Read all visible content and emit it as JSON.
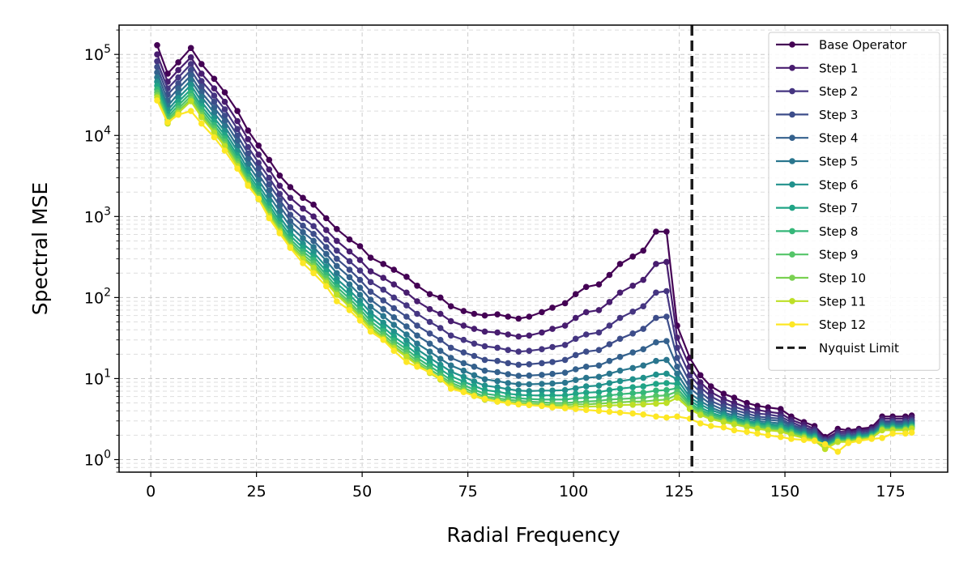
{
  "chart_data": {
    "type": "line",
    "xlabel": "Radial Frequency",
    "ylabel": "Spectral MSE",
    "xlim": [
      -7.5,
      188.5
    ],
    "ylim": [
      0.7,
      230000
    ],
    "yscale": "log",
    "xticks": [
      0,
      25,
      50,
      75,
      100,
      125,
      150,
      175
    ],
    "xtick_labels": [
      "0",
      "25",
      "50",
      "75",
      "100",
      "125",
      "150",
      "175"
    ],
    "yticks": [
      1,
      10,
      100,
      1000,
      10000,
      100000
    ],
    "ytick_base": "10",
    "ytick_exponents": [
      "0",
      "1",
      "2",
      "3",
      "4",
      "5"
    ],
    "grid": true,
    "legend_position": "top-right",
    "reference_line": {
      "name": "Nyquist Limit",
      "x": 128,
      "style": "dashed",
      "color": "#1a1a1a"
    },
    "x": [
      1.5,
      4,
      6.5,
      9.5,
      12,
      15,
      17.5,
      20.5,
      23,
      25.5,
      28,
      30.5,
      33,
      36,
      38.5,
      41.5,
      44,
      47,
      49.5,
      52,
      55,
      57.5,
      60.5,
      63,
      66,
      68.5,
      71,
      74,
      76.5,
      79,
      82,
      84.5,
      87,
      89.5,
      92.5,
      95,
      98,
      100.5,
      103,
      106,
      108.5,
      111,
      114,
      116.5,
      119.5,
      122,
      124.5,
      127.5,
      130,
      132.5,
      135.5,
      138,
      141,
      143.5,
      146,
      149,
      151.5,
      154.5,
      157,
      159.5,
      162.5,
      165,
      167.5,
      170.5,
      173,
      175.5,
      178.5,
      180
    ],
    "series": [
      {
        "name": "Base Operator",
        "color": "#440154",
        "values": [
          130000,
          58000,
          80000,
          120000,
          76000,
          50000,
          34000,
          20000,
          11500,
          7500,
          5000,
          3200,
          2300,
          1700,
          1400,
          950,
          700,
          520,
          430,
          310,
          260,
          220,
          180,
          140,
          110,
          100,
          78,
          68,
          63,
          60,
          62,
          58,
          55,
          58,
          66,
          75,
          85,
          110,
          135,
          145,
          190,
          260,
          320,
          380,
          650,
          650,
          45,
          18,
          11,
          8,
          6.5,
          5.8,
          5.0,
          4.6,
          4.4,
          4.2,
          3.4,
          2.9,
          2.6,
          1.9,
          2.4,
          2.3,
          2.4,
          2.5,
          3.4,
          3.4,
          3.4,
          3.5
        ]
      },
      {
        "name": "Step 1",
        "color": "#481d6f",
        "values": [
          100000,
          46000,
          64000,
          92000,
          58000,
          38000,
          26000,
          15000,
          9000,
          5800,
          3800,
          2400,
          1700,
          1250,
          1000,
          680,
          500,
          370,
          290,
          210,
          175,
          145,
          115,
          90,
          72,
          63,
          51,
          45,
          41,
          38,
          37,
          35,
          33,
          34,
          37,
          41,
          45,
          56,
          66,
          70,
          88,
          115,
          140,
          165,
          260,
          275,
          32,
          14,
          9,
          6.8,
          5.6,
          5.0,
          4.4,
          4.1,
          3.9,
          3.7,
          3.1,
          2.7,
          2.4,
          1.8,
          2.2,
          2.2,
          2.3,
          2.4,
          3.2,
          3.2,
          3.2,
          3.3
        ]
      },
      {
        "name": "Step 2",
        "color": "#453581",
        "values": [
          82000,
          38000,
          52000,
          76000,
          47000,
          31000,
          21000,
          12000,
          7200,
          4600,
          3000,
          1900,
          1300,
          950,
          760,
          520,
          380,
          280,
          215,
          155,
          125,
          100,
          80,
          63,
          50,
          42,
          34,
          30,
          27,
          25,
          24,
          22.5,
          21.5,
          22,
          23,
          24.5,
          26,
          31,
          35,
          37,
          45,
          56,
          67,
          78,
          115,
          120,
          24,
          11,
          7.8,
          6.0,
          5.0,
          4.5,
          4.0,
          3.7,
          3.6,
          3.4,
          2.9,
          2.5,
          2.3,
          1.75,
          2.1,
          2.1,
          2.2,
          2.3,
          3.0,
          3.0,
          3.0,
          3.1
        ]
      },
      {
        "name": "Step 3",
        "color": "#3d4d8a",
        "values": [
          70000,
          32000,
          44000,
          64000,
          40000,
          26000,
          17500,
          10000,
          6000,
          3900,
          2500,
          1600,
          1050,
          770,
          610,
          420,
          300,
          220,
          165,
          118,
          92,
          74,
          58,
          45,
          36,
          30,
          24,
          21,
          19,
          17,
          16.5,
          15.5,
          14.8,
          15,
          15.5,
          16,
          17,
          19.5,
          21.5,
          22.5,
          26.5,
          31,
          36,
          41,
          56,
          58,
          18,
          9.0,
          6.8,
          5.3,
          4.5,
          4.1,
          3.7,
          3.4,
          3.3,
          3.2,
          2.7,
          2.4,
          2.2,
          1.7,
          2.0,
          2.0,
          2.1,
          2.2,
          2.9,
          2.9,
          2.9,
          3.0
        ]
      },
      {
        "name": "Step 4",
        "color": "#34618d",
        "values": [
          60000,
          27000,
          38000,
          55000,
          34000,
          22000,
          15000,
          8500,
          5100,
          3300,
          2100,
          1350,
          880,
          640,
          500,
          345,
          245,
          178,
          132,
          94,
          72,
          57,
          44,
          34,
          27,
          22,
          18,
          15.5,
          14,
          12.5,
          12,
          11.3,
          10.8,
          10.9,
          11.1,
          11.4,
          11.8,
          13,
          14,
          14.5,
          16.5,
          18.5,
          21,
          23,
          28,
          29,
          14,
          7.6,
          6.0,
          4.8,
          4.1,
          3.8,
          3.4,
          3.2,
          3.1,
          3.0,
          2.6,
          2.3,
          2.1,
          1.65,
          1.95,
          1.95,
          2.05,
          2.15,
          2.8,
          2.8,
          2.8,
          2.9
        ]
      },
      {
        "name": "Step 5",
        "color": "#2a768e",
        "values": [
          52000,
          23000,
          33000,
          48000,
          30000,
          19000,
          13000,
          7300,
          4400,
          2800,
          1800,
          1150,
          750,
          540,
          420,
          285,
          200,
          145,
          108,
          77,
          59,
          46,
          35,
          27,
          21.5,
          17.5,
          14.5,
          12.5,
          11,
          9.8,
          9.3,
          8.8,
          8.5,
          8.5,
          8.6,
          8.7,
          8.9,
          9.6,
          10.2,
          10.5,
          11.5,
          12.5,
          13.5,
          14.5,
          16.5,
          17,
          11.5,
          6.6,
          5.3,
          4.4,
          3.8,
          3.5,
          3.2,
          3.0,
          2.9,
          2.8,
          2.5,
          2.2,
          2.0,
          1.6,
          1.9,
          1.9,
          2.0,
          2.1,
          2.7,
          2.7,
          2.7,
          2.8
        ]
      },
      {
        "name": "Step 6",
        "color": "#21918c",
        "values": [
          46000,
          20500,
          29000,
          42000,
          26000,
          16500,
          11300,
          6400,
          3800,
          2450,
          1550,
          990,
          650,
          460,
          360,
          240,
          170,
          123,
          91,
          65,
          49,
          38,
          29.5,
          23,
          18,
          14.8,
          12.2,
          10.5,
          9.2,
          8.2,
          7.8,
          7.4,
          7.1,
          7.0,
          7.1,
          7.1,
          7.2,
          7.6,
          8.0,
          8.2,
          8.8,
          9.3,
          9.8,
          10.2,
          11.2,
          11.5,
          9.8,
          5.9,
          4.8,
          4.1,
          3.6,
          3.3,
          3.0,
          2.85,
          2.75,
          2.65,
          2.4,
          2.1,
          1.95,
          1.55,
          1.85,
          1.85,
          1.95,
          2.05,
          2.6,
          2.6,
          2.6,
          2.7
        ]
      },
      {
        "name": "Step 7",
        "color": "#20a486",
        "values": [
          41000,
          18500,
          26000,
          37000,
          23000,
          14800,
          10100,
          5700,
          3400,
          2200,
          1380,
          880,
          580,
          410,
          320,
          212,
          150,
          108,
          80,
          57,
          43,
          33,
          25.5,
          20,
          15.8,
          13,
          10.7,
          9.2,
          8.1,
          7.2,
          6.9,
          6.5,
          6.3,
          6.2,
          6.2,
          6.2,
          6.2,
          6.5,
          6.7,
          6.8,
          7.2,
          7.5,
          7.8,
          8.0,
          8.6,
          8.8,
          8.6,
          5.4,
          4.4,
          3.8,
          3.4,
          3.15,
          2.9,
          2.75,
          2.65,
          2.55,
          2.3,
          2.05,
          1.9,
          1.5,
          1.8,
          1.8,
          1.9,
          2.0,
          2.5,
          2.5,
          2.5,
          2.6
        ]
      },
      {
        "name": "Step 8",
        "color": "#35b779",
        "values": [
          37000,
          17000,
          23500,
          33500,
          21000,
          13400,
          9200,
          5200,
          3100,
          2000,
          1250,
          800,
          525,
          370,
          290,
          190,
          135,
          97,
          72,
          51,
          38.5,
          29.5,
          23,
          18,
          14.2,
          11.7,
          9.6,
          8.3,
          7.3,
          6.5,
          6.2,
          5.9,
          5.7,
          5.6,
          5.5,
          5.5,
          5.5,
          5.7,
          5.8,
          5.9,
          6.2,
          6.4,
          6.6,
          6.7,
          7.1,
          7.2,
          7.6,
          5.0,
          4.1,
          3.6,
          3.25,
          3.0,
          2.8,
          2.65,
          2.55,
          2.45,
          2.2,
          2.0,
          1.85,
          1.45,
          1.75,
          1.75,
          1.85,
          1.95,
          2.45,
          2.45,
          2.45,
          2.55
        ]
      },
      {
        "name": "Step 9",
        "color": "#54c568",
        "values": [
          34000,
          15800,
          21500,
          30500,
          19200,
          12300,
          8400,
          4800,
          2850,
          1850,
          1150,
          735,
          485,
          340,
          265,
          174,
          123,
          88,
          65,
          46.5,
          35,
          27,
          21,
          16.5,
          13,
          10.8,
          8.9,
          7.7,
          6.7,
          6.0,
          5.7,
          5.5,
          5.3,
          5.2,
          5.1,
          5.0,
          5.0,
          5.1,
          5.2,
          5.3,
          5.5,
          5.6,
          5.7,
          5.8,
          6.1,
          6.2,
          6.9,
          4.7,
          3.9,
          3.4,
          3.1,
          2.9,
          2.7,
          2.55,
          2.45,
          2.35,
          2.15,
          1.95,
          1.8,
          1.42,
          1.72,
          1.72,
          1.82,
          1.92,
          2.4,
          2.4,
          2.4,
          2.5
        ]
      },
      {
        "name": "Step 10",
        "color": "#7ad151",
        "values": [
          31500,
          14800,
          20000,
          28000,
          17800,
          11400,
          7800,
          4450,
          2650,
          1720,
          1070,
          685,
          450,
          315,
          245,
          161,
          114,
          82,
          60,
          43,
          32.5,
          25,
          19.5,
          15.4,
          12.2,
          10.1,
          8.4,
          7.2,
          6.3,
          5.7,
          5.4,
          5.2,
          5.0,
          4.9,
          4.8,
          4.7,
          4.7,
          4.8,
          4.8,
          4.9,
          5.0,
          5.1,
          5.2,
          5.2,
          5.4,
          5.5,
          6.3,
          4.4,
          3.7,
          3.25,
          3.0,
          2.8,
          2.6,
          2.45,
          2.35,
          2.28,
          2.08,
          1.9,
          1.75,
          1.38,
          1.68,
          1.68,
          1.78,
          1.88,
          2.35,
          2.35,
          2.35,
          2.45
        ]
      },
      {
        "name": "Step 11",
        "color": "#bddf26",
        "values": [
          29500,
          14000,
          19000,
          26500,
          16800,
          10800,
          7350,
          4200,
          2500,
          1630,
          1010,
          650,
          425,
          298,
          232,
          152,
          108,
          77,
          57,
          41,
          31,
          23.8,
          18.5,
          14.7,
          11.7,
          9.7,
          8.0,
          6.9,
          6.1,
          5.5,
          5.2,
          5.0,
          4.8,
          4.7,
          4.6,
          4.5,
          4.45,
          4.5,
          4.5,
          4.55,
          4.65,
          4.7,
          4.75,
          4.8,
          4.9,
          5.0,
          5.8,
          4.2,
          3.55,
          3.15,
          2.9,
          2.72,
          2.52,
          2.4,
          2.3,
          2.22,
          2.02,
          1.85,
          1.72,
          1.35,
          1.65,
          1.65,
          1.75,
          1.85,
          2.3,
          2.3,
          2.3,
          2.4
        ]
      },
      {
        "name": "Step 12",
        "color": "#fde725",
        "values": [
          27000,
          14500,
          18000,
          20000,
          14000,
          9500,
          6500,
          3900,
          2400,
          1650,
          950,
          620,
          410,
          265,
          200,
          138,
          90,
          70,
          52,
          38,
          30,
          22,
          16,
          14,
          12,
          10,
          7.5,
          6.8,
          6.1,
          5.6,
          5.2,
          5.0,
          4.8,
          4.7,
          4.6,
          4.4,
          4.3,
          4.2,
          4.1,
          4.0,
          3.9,
          3.8,
          3.7,
          3.6,
          3.4,
          3.3,
          3.4,
          3.2,
          2.8,
          2.6,
          2.5,
          2.3,
          2.2,
          2.1,
          2.0,
          1.9,
          1.8,
          1.75,
          1.7,
          1.55,
          1.25,
          1.6,
          1.7,
          1.8,
          1.85,
          2.1,
          2.1,
          2.15
        ]
      }
    ]
  }
}
